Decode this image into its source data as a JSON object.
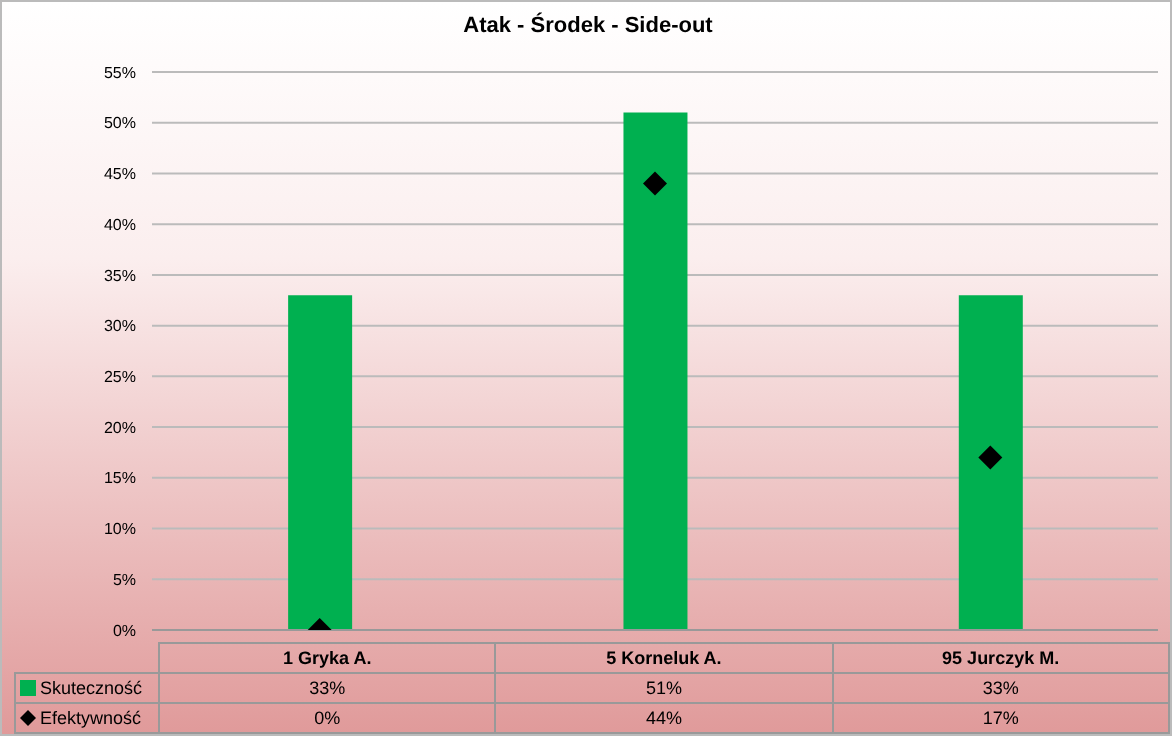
{
  "chart_data": {
    "type": "bar",
    "title": "Atak - Środek - Side-out",
    "categories": [
      "1 Gryka A.",
      "5 Korneluk A.",
      "95 Jurczyk M."
    ],
    "series": [
      {
        "name": "Skuteczność",
        "color": "#00b050",
        "values": [
          33,
          51,
          33
        ],
        "value_labels": [
          "33%",
          "51%",
          "33%"
        ]
      },
      {
        "name": "Efektywność",
        "type": "scatter",
        "color": "#000000",
        "marker": "diamond",
        "values": [
          0,
          44,
          17
        ],
        "value_labels": [
          "0%",
          "44%",
          "17%"
        ]
      }
    ],
    "ylim": [
      0,
      55
    ],
    "yticks": [
      {
        "value": 0,
        "label": "0%"
      },
      {
        "value": 5,
        "label": "5%"
      },
      {
        "value": 10,
        "label": "10%"
      },
      {
        "value": 15,
        "label": "15%"
      },
      {
        "value": 20,
        "label": "20%"
      },
      {
        "value": 25,
        "label": "25%"
      },
      {
        "value": 30,
        "label": "30%"
      },
      {
        "value": 35,
        "label": "35%"
      },
      {
        "value": 40,
        "label": "40%"
      },
      {
        "value": 45,
        "label": "45%"
      },
      {
        "value": 50,
        "label": "50%"
      },
      {
        "value": 55,
        "label": "55%"
      }
    ],
    "grid": "y",
    "legend": "bottom"
  }
}
